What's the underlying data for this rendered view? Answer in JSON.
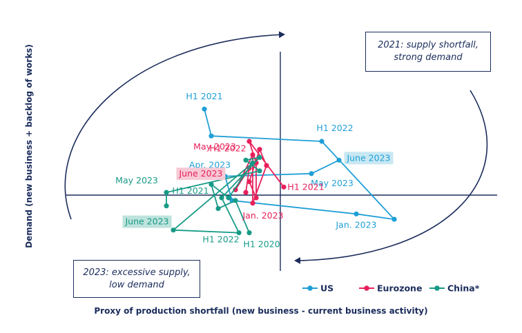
{
  "chart_data": {
    "type": "line",
    "xlabel": "Proxy of production shortfall (new business - current business activity)",
    "ylabel": "Demand (new business + backlog of works)",
    "quadrant_top_right": "2021: supply shortfall, strong demand",
    "quadrant_top_right_lines": [
      "2021: supply shortfall,",
      "strong demand"
    ],
    "quadrant_bottom_left": "2023: excessive supply, low demand",
    "quadrant_bottom_left_lines": [
      "2023: excessive supply,",
      "low demand"
    ],
    "legend_placement": "bottom-right",
    "series": [
      {
        "name": "US",
        "color": "#1f9fd6",
        "points": [
          {
            "x": -2.2,
            "y": 3.2,
            "label": "H1 2021"
          },
          {
            "x": -2.0,
            "y": 2.2
          },
          {
            "x": 1.2,
            "y": 2.0,
            "label": "H1 2022"
          },
          {
            "x": 3.3,
            "y": -0.9
          },
          {
            "x": 2.2,
            "y": -0.7,
            "label": "Jan. 2023"
          },
          {
            "x": -1.4,
            "y": -0.2
          },
          {
            "x": -1.6,
            "y": 0.7,
            "label": "Apr. 2023"
          },
          {
            "x": 0.9,
            "y": 0.8,
            "label": "May 2023"
          },
          {
            "x": 1.7,
            "y": 1.3,
            "label": "June 2023"
          }
        ]
      },
      {
        "name": "Eurozone",
        "color": "#e8205a",
        "points": [
          {
            "x": 0.1,
            "y": 0.3,
            "label": "H1 2021"
          },
          {
            "x": -0.9,
            "y": 2.0
          },
          {
            "x": -0.7,
            "y": 1.2
          },
          {
            "x": -0.7,
            "y": -0.1,
            "label": "Jan. 2023"
          },
          {
            "x": -0.9,
            "y": 0.5
          },
          {
            "x": -0.6,
            "y": 1.7
          },
          {
            "x": -0.4,
            "y": 1.1
          },
          {
            "x": -0.8,
            "y": -0.3
          },
          {
            "x": -0.8,
            "y": 1.5,
            "label": "H1 2022"
          },
          {
            "x": -1.3,
            "y": 0.2
          },
          {
            "x": -0.9,
            "y": 1.0,
            "label": "May 2023"
          },
          {
            "x": -1.0,
            "y": 0.1,
            "label": "June 2023"
          }
        ]
      },
      {
        "name": "China*",
        "color": "#179a86",
        "points": [
          {
            "x": -0.9,
            "y": -1.4,
            "label": "H1 2020"
          },
          {
            "x": -1.3,
            "y": -0.2
          },
          {
            "x": -1.8,
            "y": -0.5
          },
          {
            "x": -2.0,
            "y": 0.4
          },
          {
            "x": -1.5,
            "y": -0.1
          },
          {
            "x": -0.8,
            "y": 1.2
          },
          {
            "x": -3.1,
            "y": -1.3
          },
          {
            "x": -1.2,
            "y": -1.4,
            "label": "H1 2022"
          },
          {
            "x": -1.7,
            "y": -0.1,
            "label": "H1 2021"
          },
          {
            "x": -0.6,
            "y": 1.4
          },
          {
            "x": -1.0,
            "y": 1.3
          },
          {
            "x": -0.6,
            "y": 0.9
          },
          {
            "x": -3.3,
            "y": 0.1,
            "label": "May 2023"
          },
          {
            "x": -3.3,
            "y": -0.4,
            "label": "June 2023"
          }
        ]
      }
    ]
  }
}
